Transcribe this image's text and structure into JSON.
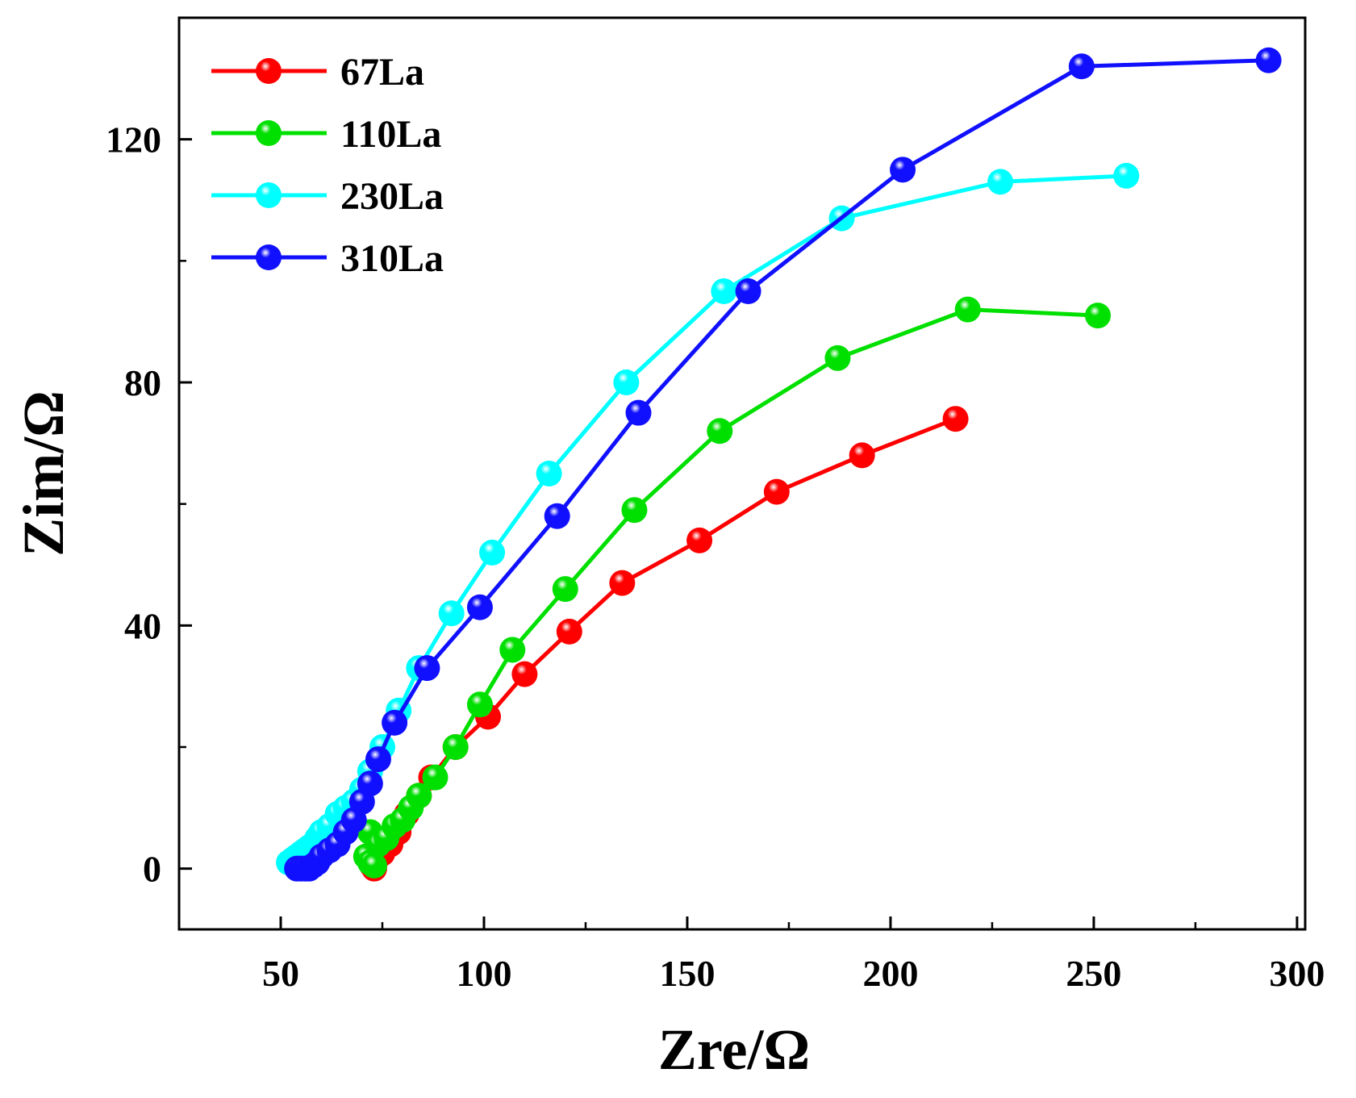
{
  "chart_data": {
    "type": "line",
    "title": "",
    "xlabel": "Zre/Ω",
    "ylabel": "Zim/Ω",
    "xlim": [
      25,
      302
    ],
    "ylim": [
      -10,
      140
    ],
    "xticks": [
      50,
      100,
      150,
      200,
      250,
      300
    ],
    "xtick_labels": [
      "50",
      "100",
      "150",
      "200",
      "250",
      "300"
    ],
    "yticks": [
      0,
      40,
      80,
      120
    ],
    "ytick_labels": [
      "0",
      "40",
      "80",
      "120"
    ],
    "grid": false,
    "legend_position": "top-left",
    "series": [
      {
        "name": "67La",
        "color": "#ff0000",
        "x": [
          73,
          72.5,
          73.5,
          75,
          77,
          79,
          81,
          84,
          87,
          93,
          101,
          110,
          121,
          134,
          153,
          172,
          193,
          216
        ],
        "y": [
          0,
          0.5,
          1.5,
          2.5,
          4,
          6,
          9,
          12,
          15,
          20,
          25,
          32,
          39,
          47,
          54,
          62,
          68,
          74
        ]
      },
      {
        "name": "110La",
        "color": "#00e000",
        "x": [
          71,
          72,
          73,
          72,
          74,
          76,
          78,
          80,
          82,
          84,
          88,
          93,
          99,
          107,
          120,
          137,
          158,
          187,
          219,
          251
        ],
        "y": [
          2,
          1,
          0.5,
          6,
          4,
          5,
          7,
          8,
          10,
          12,
          15,
          20,
          27,
          36,
          46,
          59,
          72,
          84,
          92,
          91
        ]
      },
      {
        "name": "230La",
        "color": "#00ffff",
        "x": [
          52,
          53,
          54,
          55,
          56,
          57,
          58,
          59,
          60,
          62,
          64,
          66,
          68,
          70,
          72,
          75,
          79,
          84,
          92,
          102,
          116,
          135,
          159,
          188,
          227,
          258
        ],
        "y": [
          1,
          1.5,
          2,
          2.5,
          3,
          3.5,
          4,
          5,
          6,
          7,
          9,
          10,
          11,
          13,
          16,
          20,
          26,
          33,
          42,
          52,
          65,
          80,
          95,
          107,
          113,
          114
        ]
      },
      {
        "name": "310La",
        "color": "#1010ff",
        "x": [
          54,
          55,
          56,
          57,
          58,
          59,
          60,
          62,
          64,
          66,
          68,
          70,
          72,
          74,
          78,
          86,
          99,
          118,
          138,
          165,
          203,
          247,
          293
        ],
        "y": [
          0,
          0,
          0,
          0,
          0.5,
          1,
          2,
          3,
          4,
          6,
          8,
          11,
          14,
          18,
          24,
          33,
          43,
          58,
          75,
          95,
          115,
          132,
          133
        ]
      }
    ]
  }
}
